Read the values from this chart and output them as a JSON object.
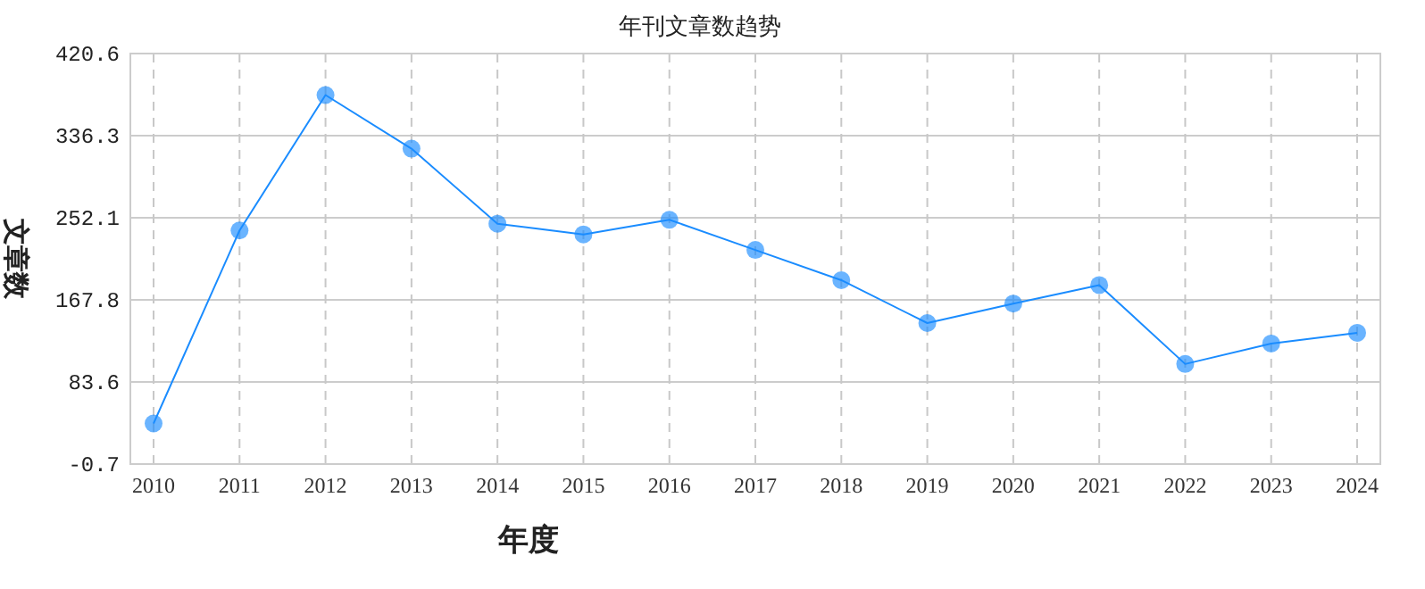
{
  "chart_data": {
    "type": "line",
    "title": "年刊文章数趋势",
    "xlabel": "年度",
    "ylabel": "文章数",
    "categories": [
      "2010",
      "2011",
      "2012",
      "2013",
      "2014",
      "2015",
      "2016",
      "2017",
      "2018",
      "2019",
      "2020",
      "2021",
      "2022",
      "2023",
      "2024"
    ],
    "series": [
      {
        "color": "#1a8cff",
        "values": [
          41,
          239,
          378,
          323,
          246,
          235,
          250,
          219,
          188,
          144,
          164,
          183,
          102,
          123,
          134
        ]
      }
    ],
    "ylim": [
      -0.7,
      420.6
    ],
    "yticks": [
      -0.7,
      83.6,
      167.8,
      252.1,
      336.3,
      420.6
    ],
    "grid": true,
    "marker": "circle",
    "line_style": "solid"
  }
}
